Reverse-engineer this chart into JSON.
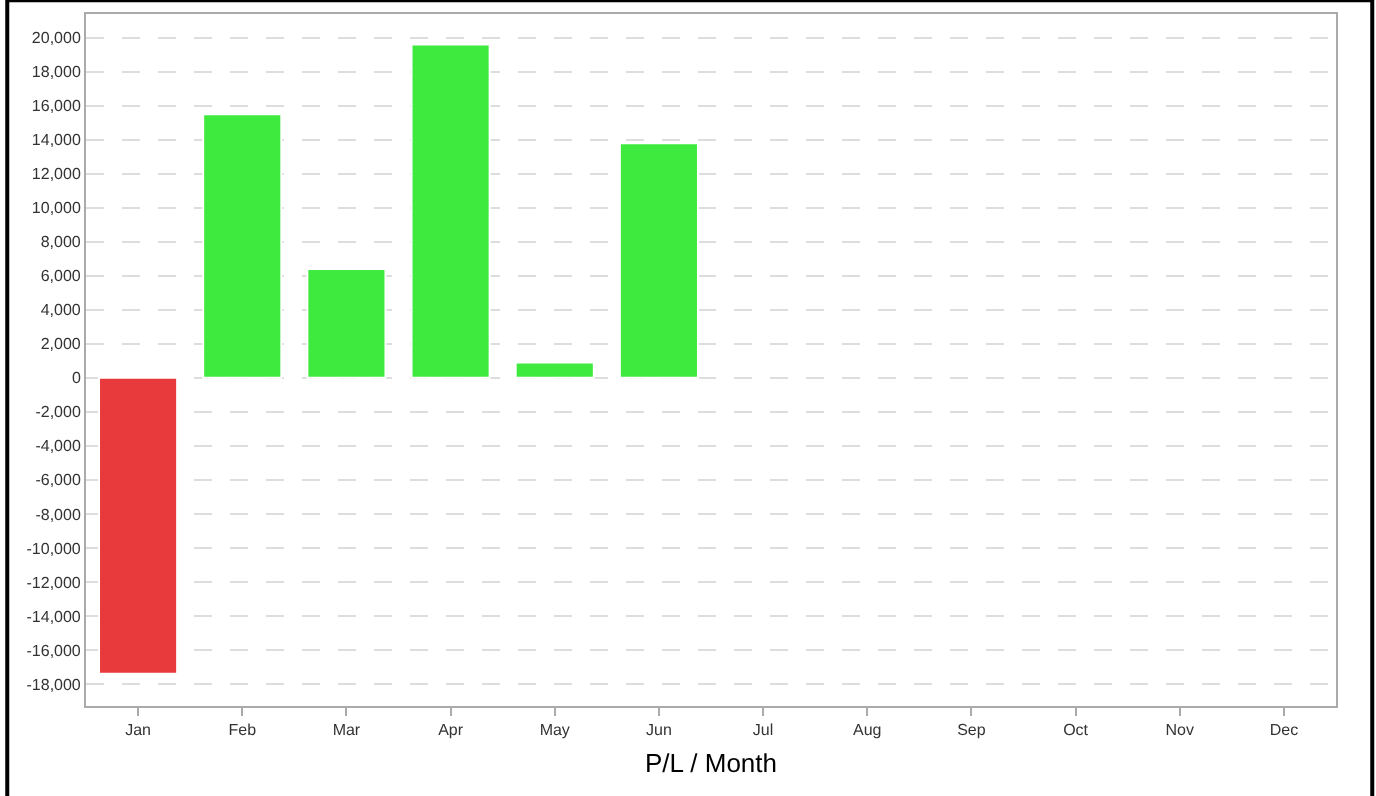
{
  "chart_data": {
    "type": "bar",
    "xlabel": "P/L / Month",
    "categories": [
      "Jan",
      "Feb",
      "Mar",
      "Apr",
      "May",
      "Jun",
      "Jul",
      "Aug",
      "Sep",
      "Oct",
      "Nov",
      "Dec"
    ],
    "values": [
      -17400,
      15500,
      6400,
      19600,
      900,
      13800,
      null,
      null,
      null,
      null,
      null,
      null
    ],
    "colors": [
      "#e8393c",
      "#3eea3e",
      "#3eea3e",
      "#3eea3e",
      "#3eea3e",
      "#3eea3e",
      "#3eea3e",
      "#3eea3e",
      "#3eea3e",
      "#3eea3e",
      "#3eea3e",
      "#3eea3e"
    ],
    "ylim": [
      -19300,
      21400
    ],
    "yticks": [
      {
        "value": -18000,
        "label": "-18,000"
      },
      {
        "value": -16000,
        "label": "-16,000"
      },
      {
        "value": -14000,
        "label": "-14,000"
      },
      {
        "value": -12000,
        "label": "-12,000"
      },
      {
        "value": -10000,
        "label": "-10,000"
      },
      {
        "value": -8000,
        "label": "-8,000"
      },
      {
        "value": -6000,
        "label": "-6,000"
      },
      {
        "value": -4000,
        "label": "-4,000"
      },
      {
        "value": -2000,
        "label": "-2,000"
      },
      0,
      {
        "value": 2000,
        "label": "2,000"
      },
      {
        "value": 4000,
        "label": "4,000"
      },
      {
        "value": 6000,
        "label": "6,000"
      },
      {
        "value": 8000,
        "label": "8,000"
      },
      {
        "value": 10000,
        "label": "10,000"
      },
      {
        "value": 12000,
        "label": "12,000"
      },
      {
        "value": 14000,
        "label": "14,000"
      },
      {
        "value": 16000,
        "label": "16,000"
      },
      {
        "value": 18000,
        "label": "18,000"
      },
      {
        "value": 20000,
        "label": "20,000"
      }
    ],
    "grid": "y"
  }
}
